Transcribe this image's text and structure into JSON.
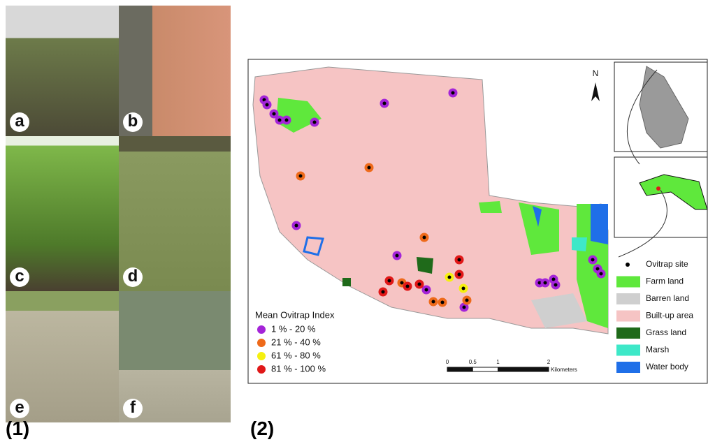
{
  "figure": {
    "panel_labels": [
      "(1)",
      "(2)"
    ],
    "photos": [
      "a",
      "b",
      "c",
      "d",
      "e",
      "f"
    ],
    "map": {
      "north": "N",
      "index_legend": {
        "title": "Mean Ovitrap Index",
        "items": [
          {
            "label": "1 %   - 20 %",
            "color": "#a424d8"
          },
          {
            "label": "21 % - 40 %",
            "color": "#ee6a1a"
          },
          {
            "label": "61 % - 80 %",
            "color": "#f5f010"
          },
          {
            "label": "81 % - 100 %",
            "color": "#e01818"
          }
        ]
      },
      "land_legend": [
        {
          "label": "Ovitrap site",
          "color": "#000000"
        },
        {
          "label": "Farm land",
          "color": "#5fe83c"
        },
        {
          "label": "Barren land",
          "color": "#cfcfcf"
        },
        {
          "label": "Built-up area",
          "color": "#f6c4c4"
        },
        {
          "label": "Grass land",
          "color": "#1f6a1a"
        },
        {
          "label": "Marsh",
          "color": "#3ee8c8"
        },
        {
          "label": "Water body",
          "color": "#1f6fe8"
        }
      ],
      "scale": {
        "ticks": [
          0,
          0.5,
          1,
          2
        ],
        "unit": "Kilometers"
      }
    }
  }
}
